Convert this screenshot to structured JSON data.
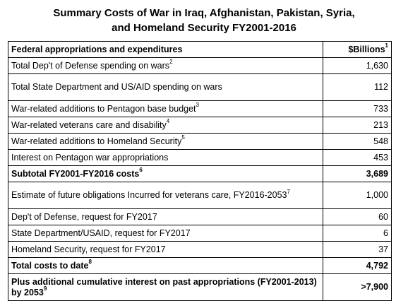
{
  "title": {
    "line1": "Summary Costs of War in Iraq, Afghanistan, Pakistan, Syria,",
    "line2": "and Homeland Security FY2001-2016"
  },
  "table": {
    "header": {
      "label": "Federal appropriations and expenditures",
      "value": "$Billions",
      "sup": "1"
    },
    "rows": [
      {
        "label": "Total Dep't of Defense spending on wars",
        "sup": "2",
        "value": "1,630"
      },
      {
        "label": "Total State Department and US/AID spending on wars",
        "sup": "",
        "value": "112"
      },
      {
        "label": "War-related additions to Pentagon base budget",
        "sup": "3",
        "value": "733"
      },
      {
        "label": "War-related veterans care and disability",
        "sup": "4",
        "value": "213"
      },
      {
        "label": "War-related additions to Homeland Security",
        "sup": "5",
        "value": "548"
      },
      {
        "label": "Interest on Pentagon war appropriations",
        "sup": "",
        "value": "453"
      },
      {
        "label": "Subtotal FY2001-FY2016 costs",
        "sup": "6",
        "value": "3,689"
      },
      {
        "label": "Estimate of future obligations Incurred for veterans care, FY2016-2053",
        "sup": "7",
        "value": "1,000"
      },
      {
        "label": "Dep't of Defense, request for FY2017",
        "sup": "",
        "value": "60"
      },
      {
        "label": "State Department/USAID, request for FY2017",
        "sup": "",
        "value": "6"
      },
      {
        "label": "Homeland Security, request for FY2017",
        "sup": "",
        "value": "37"
      },
      {
        "label": "Total costs to date",
        "sup": "8",
        "value": "4,792"
      },
      {
        "label": "Plus additional cumulative interest on past appropriations (FY2001-2013) by 2053",
        "sup": "9",
        "value": ">7,900"
      }
    ]
  }
}
